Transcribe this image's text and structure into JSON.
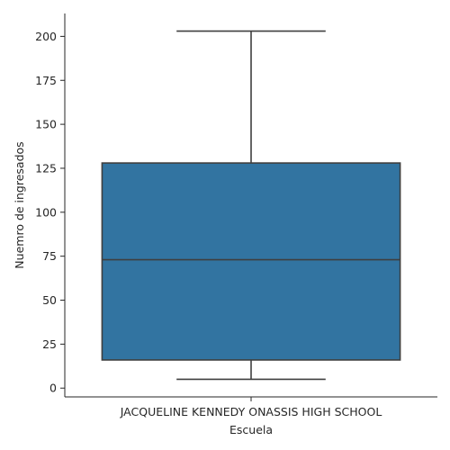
{
  "chart_data": {
    "type": "box",
    "xlabel": "Escuela",
    "ylabel": "Nuemro de ingresados",
    "categories": [
      "JACQUELINE KENNEDY ONASSIS HIGH SCHOOL"
    ],
    "boxes": [
      {
        "category": "JACQUELINE KENNEDY ONASSIS HIGH SCHOOL",
        "whisker_low": 5,
        "q1": 16,
        "median": 73,
        "q3": 128,
        "whisker_high": 203,
        "color": "#3274a1"
      }
    ],
    "ylim": [
      -5,
      213
    ],
    "yticks": [
      0,
      25,
      50,
      75,
      100,
      125,
      150,
      175,
      200
    ],
    "grid": false,
    "legend": "none"
  }
}
